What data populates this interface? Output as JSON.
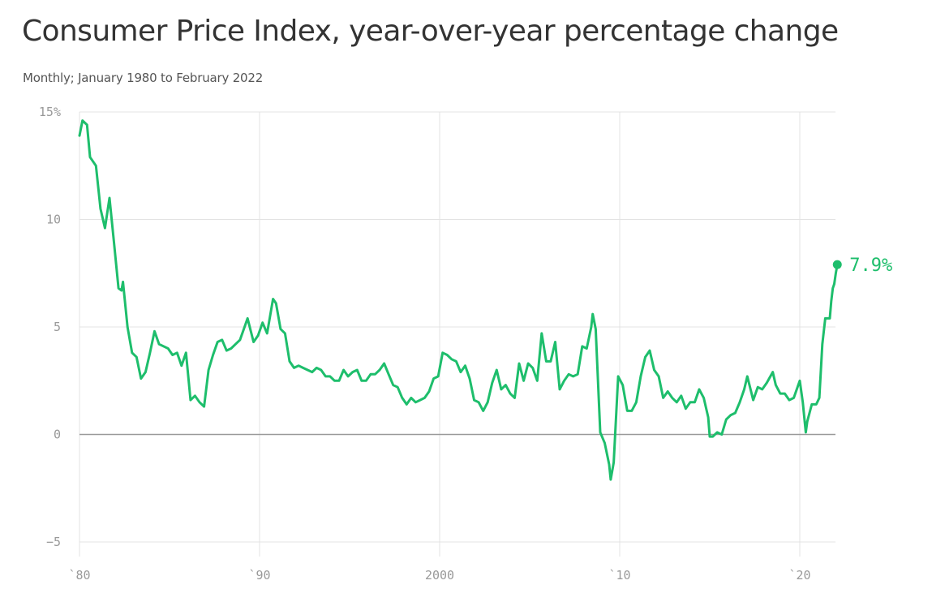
{
  "header": {
    "title": "Consumer Price Index, year-over-year percentage change",
    "subtitle": "Monthly; January 1980 to February 2022"
  },
  "chart_data": {
    "type": "line",
    "title": "Consumer Price Index, year-over-year percentage change",
    "subtitle": "Monthly; January 1980 to February 2022",
    "xlabel": "",
    "ylabel": "",
    "xlim": [
      "1980-01",
      "2022-02"
    ],
    "ylim": [
      -5,
      15
    ],
    "y_ticks": [
      {
        "value": 15,
        "label": "15%"
      },
      {
        "value": 10,
        "label": "10"
      },
      {
        "value": 5,
        "label": "5"
      },
      {
        "value": 0,
        "label": "0"
      },
      {
        "value": -5,
        "label": "−5"
      }
    ],
    "x_ticks": [
      {
        "value": "1980-01",
        "label": "`80"
      },
      {
        "value": "1990-01",
        "label": "`90"
      },
      {
        "value": "2000-01",
        "label": "2000"
      },
      {
        "value": "2010-01",
        "label": "`10"
      },
      {
        "value": "2020-01",
        "label": "`20"
      }
    ],
    "grid": true,
    "line_color": "#1ebe6c",
    "series": [
      {
        "name": "",
        "points": [
          [
            "1980-01",
            13.9
          ],
          [
            "1980-03",
            14.6
          ],
          [
            "1980-06",
            14.4
          ],
          [
            "1980-08",
            12.9
          ],
          [
            "1980-12",
            12.5
          ],
          [
            "1981-03",
            10.5
          ],
          [
            "1981-06",
            9.6
          ],
          [
            "1981-09",
            11.0
          ],
          [
            "1981-12",
            8.9
          ],
          [
            "1982-03",
            6.8
          ],
          [
            "1982-05",
            6.7
          ],
          [
            "1982-06",
            7.1
          ],
          [
            "1982-09",
            5.0
          ],
          [
            "1982-12",
            3.8
          ],
          [
            "1983-03",
            3.6
          ],
          [
            "1983-06",
            2.6
          ],
          [
            "1983-09",
            2.9
          ],
          [
            "1983-12",
            3.8
          ],
          [
            "1984-03",
            4.8
          ],
          [
            "1984-06",
            4.2
          ],
          [
            "1984-12",
            4.0
          ],
          [
            "1985-03",
            3.7
          ],
          [
            "1985-06",
            3.8
          ],
          [
            "1985-09",
            3.2
          ],
          [
            "1985-12",
            3.8
          ],
          [
            "1986-03",
            1.6
          ],
          [
            "1986-06",
            1.8
          ],
          [
            "1986-09",
            1.5
          ],
          [
            "1986-12",
            1.3
          ],
          [
            "1987-03",
            3.0
          ],
          [
            "1987-06",
            3.7
          ],
          [
            "1987-09",
            4.3
          ],
          [
            "1987-12",
            4.4
          ],
          [
            "1988-03",
            3.9
          ],
          [
            "1988-06",
            4.0
          ],
          [
            "1988-09",
            4.2
          ],
          [
            "1988-12",
            4.4
          ],
          [
            "1989-03",
            5.0
          ],
          [
            "1989-05",
            5.4
          ],
          [
            "1989-09",
            4.3
          ],
          [
            "1989-12",
            4.6
          ],
          [
            "1990-03",
            5.2
          ],
          [
            "1990-06",
            4.7
          ],
          [
            "1990-10",
            6.3
          ],
          [
            "1990-12",
            6.1
          ],
          [
            "1991-03",
            4.9
          ],
          [
            "1991-06",
            4.7
          ],
          [
            "1991-09",
            3.4
          ],
          [
            "1991-12",
            3.1
          ],
          [
            "1992-03",
            3.2
          ],
          [
            "1992-06",
            3.1
          ],
          [
            "1992-12",
            2.9
          ],
          [
            "1993-03",
            3.1
          ],
          [
            "1993-06",
            3.0
          ],
          [
            "1993-09",
            2.7
          ],
          [
            "1993-12",
            2.7
          ],
          [
            "1994-03",
            2.5
          ],
          [
            "1994-06",
            2.5
          ],
          [
            "1994-09",
            3.0
          ],
          [
            "1994-12",
            2.7
          ],
          [
            "1995-03",
            2.9
          ],
          [
            "1995-06",
            3.0
          ],
          [
            "1995-09",
            2.5
          ],
          [
            "1995-12",
            2.5
          ],
          [
            "1996-03",
            2.8
          ],
          [
            "1996-06",
            2.8
          ],
          [
            "1996-09",
            3.0
          ],
          [
            "1996-12",
            3.3
          ],
          [
            "1997-03",
            2.8
          ],
          [
            "1997-06",
            2.3
          ],
          [
            "1997-09",
            2.2
          ],
          [
            "1997-12",
            1.7
          ],
          [
            "1998-03",
            1.4
          ],
          [
            "1998-06",
            1.7
          ],
          [
            "1998-09",
            1.5
          ],
          [
            "1998-12",
            1.6
          ],
          [
            "1999-03",
            1.7
          ],
          [
            "1999-06",
            2.0
          ],
          [
            "1999-09",
            2.6
          ],
          [
            "1999-12",
            2.7
          ],
          [
            "2000-03",
            3.8
          ],
          [
            "2000-06",
            3.7
          ],
          [
            "2000-09",
            3.5
          ],
          [
            "2000-12",
            3.4
          ],
          [
            "2001-03",
            2.9
          ],
          [
            "2001-06",
            3.2
          ],
          [
            "2001-09",
            2.6
          ],
          [
            "2001-12",
            1.6
          ],
          [
            "2002-03",
            1.5
          ],
          [
            "2002-06",
            1.1
          ],
          [
            "2002-09",
            1.5
          ],
          [
            "2002-12",
            2.4
          ],
          [
            "2003-03",
            3.0
          ],
          [
            "2003-06",
            2.1
          ],
          [
            "2003-09",
            2.3
          ],
          [
            "2003-12",
            1.9
          ],
          [
            "2004-03",
            1.7
          ],
          [
            "2004-06",
            3.3
          ],
          [
            "2004-09",
            2.5
          ],
          [
            "2004-12",
            3.3
          ],
          [
            "2005-03",
            3.1
          ],
          [
            "2005-06",
            2.5
          ],
          [
            "2005-09",
            4.7
          ],
          [
            "2005-12",
            3.4
          ],
          [
            "2006-03",
            3.4
          ],
          [
            "2006-06",
            4.3
          ],
          [
            "2006-09",
            2.1
          ],
          [
            "2006-12",
            2.5
          ],
          [
            "2007-03",
            2.8
          ],
          [
            "2007-06",
            2.7
          ],
          [
            "2007-09",
            2.8
          ],
          [
            "2007-12",
            4.1
          ],
          [
            "2008-03",
            4.0
          ],
          [
            "2008-06",
            5.0
          ],
          [
            "2008-07",
            5.6
          ],
          [
            "2008-09",
            4.9
          ],
          [
            "2008-12",
            0.1
          ],
          [
            "2009-03",
            -0.4
          ],
          [
            "2009-06",
            -1.4
          ],
          [
            "2009-07",
            -2.1
          ],
          [
            "2009-09",
            -1.3
          ],
          [
            "2009-12",
            2.7
          ],
          [
            "2010-03",
            2.3
          ],
          [
            "2010-06",
            1.1
          ],
          [
            "2010-09",
            1.1
          ],
          [
            "2010-12",
            1.5
          ],
          [
            "2011-03",
            2.7
          ],
          [
            "2011-06",
            3.6
          ],
          [
            "2011-09",
            3.9
          ],
          [
            "2011-12",
            3.0
          ],
          [
            "2012-03",
            2.7
          ],
          [
            "2012-06",
            1.7
          ],
          [
            "2012-09",
            2.0
          ],
          [
            "2012-12",
            1.7
          ],
          [
            "2013-03",
            1.5
          ],
          [
            "2013-06",
            1.8
          ],
          [
            "2013-09",
            1.2
          ],
          [
            "2013-12",
            1.5
          ],
          [
            "2014-03",
            1.5
          ],
          [
            "2014-06",
            2.1
          ],
          [
            "2014-09",
            1.7
          ],
          [
            "2014-12",
            0.8
          ],
          [
            "2015-01",
            -0.1
          ],
          [
            "2015-03",
            -0.1
          ],
          [
            "2015-06",
            0.1
          ],
          [
            "2015-09",
            0.0
          ],
          [
            "2015-12",
            0.7
          ],
          [
            "2016-03",
            0.9
          ],
          [
            "2016-06",
            1.0
          ],
          [
            "2016-09",
            1.5
          ],
          [
            "2016-12",
            2.1
          ],
          [
            "2017-02",
            2.7
          ],
          [
            "2017-06",
            1.6
          ],
          [
            "2017-09",
            2.2
          ],
          [
            "2017-12",
            2.1
          ],
          [
            "2018-03",
            2.4
          ],
          [
            "2018-07",
            2.9
          ],
          [
            "2018-09",
            2.3
          ],
          [
            "2018-12",
            1.9
          ],
          [
            "2019-03",
            1.9
          ],
          [
            "2019-06",
            1.6
          ],
          [
            "2019-09",
            1.7
          ],
          [
            "2019-12",
            2.3
          ],
          [
            "2020-01",
            2.5
          ],
          [
            "2020-03",
            1.5
          ],
          [
            "2020-05",
            0.1
          ],
          [
            "2020-06",
            0.6
          ],
          [
            "2020-09",
            1.4
          ],
          [
            "2020-12",
            1.4
          ],
          [
            "2021-02",
            1.7
          ],
          [
            "2021-04",
            4.2
          ],
          [
            "2021-06",
            5.4
          ],
          [
            "2021-09",
            5.4
          ],
          [
            "2021-10",
            6.2
          ],
          [
            "2021-11",
            6.8
          ],
          [
            "2021-12",
            7.0
          ],
          [
            "2022-01",
            7.5
          ],
          [
            "2022-02",
            7.9
          ]
        ]
      }
    ],
    "annotations": [
      {
        "x": "2022-02",
        "y": 7.9,
        "text": "7.9%"
      }
    ]
  }
}
